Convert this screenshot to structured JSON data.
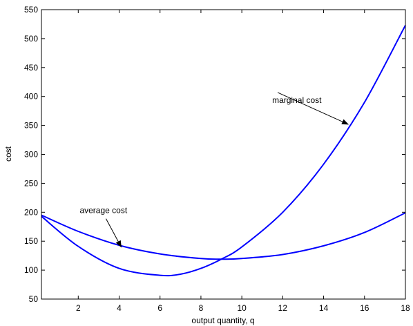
{
  "chart_data": {
    "type": "line",
    "title": "",
    "xlabel": "output quantity, q",
    "ylabel": "cost",
    "xlim": [
      0.2,
      18
    ],
    "ylim": [
      50,
      550
    ],
    "xticks": [
      2,
      4,
      6,
      8,
      10,
      12,
      14,
      16,
      18
    ],
    "yticks": [
      50,
      100,
      150,
      200,
      250,
      300,
      350,
      400,
      450,
      500,
      550
    ],
    "grid": false,
    "legend": "none",
    "line_color": "#0000ff",
    "series": [
      {
        "name": "marginal cost",
        "x": [
          0.2,
          2,
          4,
          6,
          7,
          8,
          9,
          10,
          12,
          14,
          16,
          18
        ],
        "y": [
          193,
          141,
          103,
          91,
          93,
          103,
          119,
          140,
          200,
          283,
          390,
          523
        ]
      },
      {
        "name": "average cost",
        "x": [
          0.2,
          2,
          4,
          6,
          8,
          9,
          10,
          12,
          14,
          16,
          18
        ],
        "y": [
          195,
          167,
          143,
          128,
          120,
          119,
          120,
          127,
          142,
          165,
          199
        ]
      }
    ],
    "annotations": [
      {
        "text": "marginal cost",
        "target_x": 15.2,
        "target_y": 352
      },
      {
        "text": "average cost",
        "target_x": 4.1,
        "target_y": 140
      }
    ]
  }
}
